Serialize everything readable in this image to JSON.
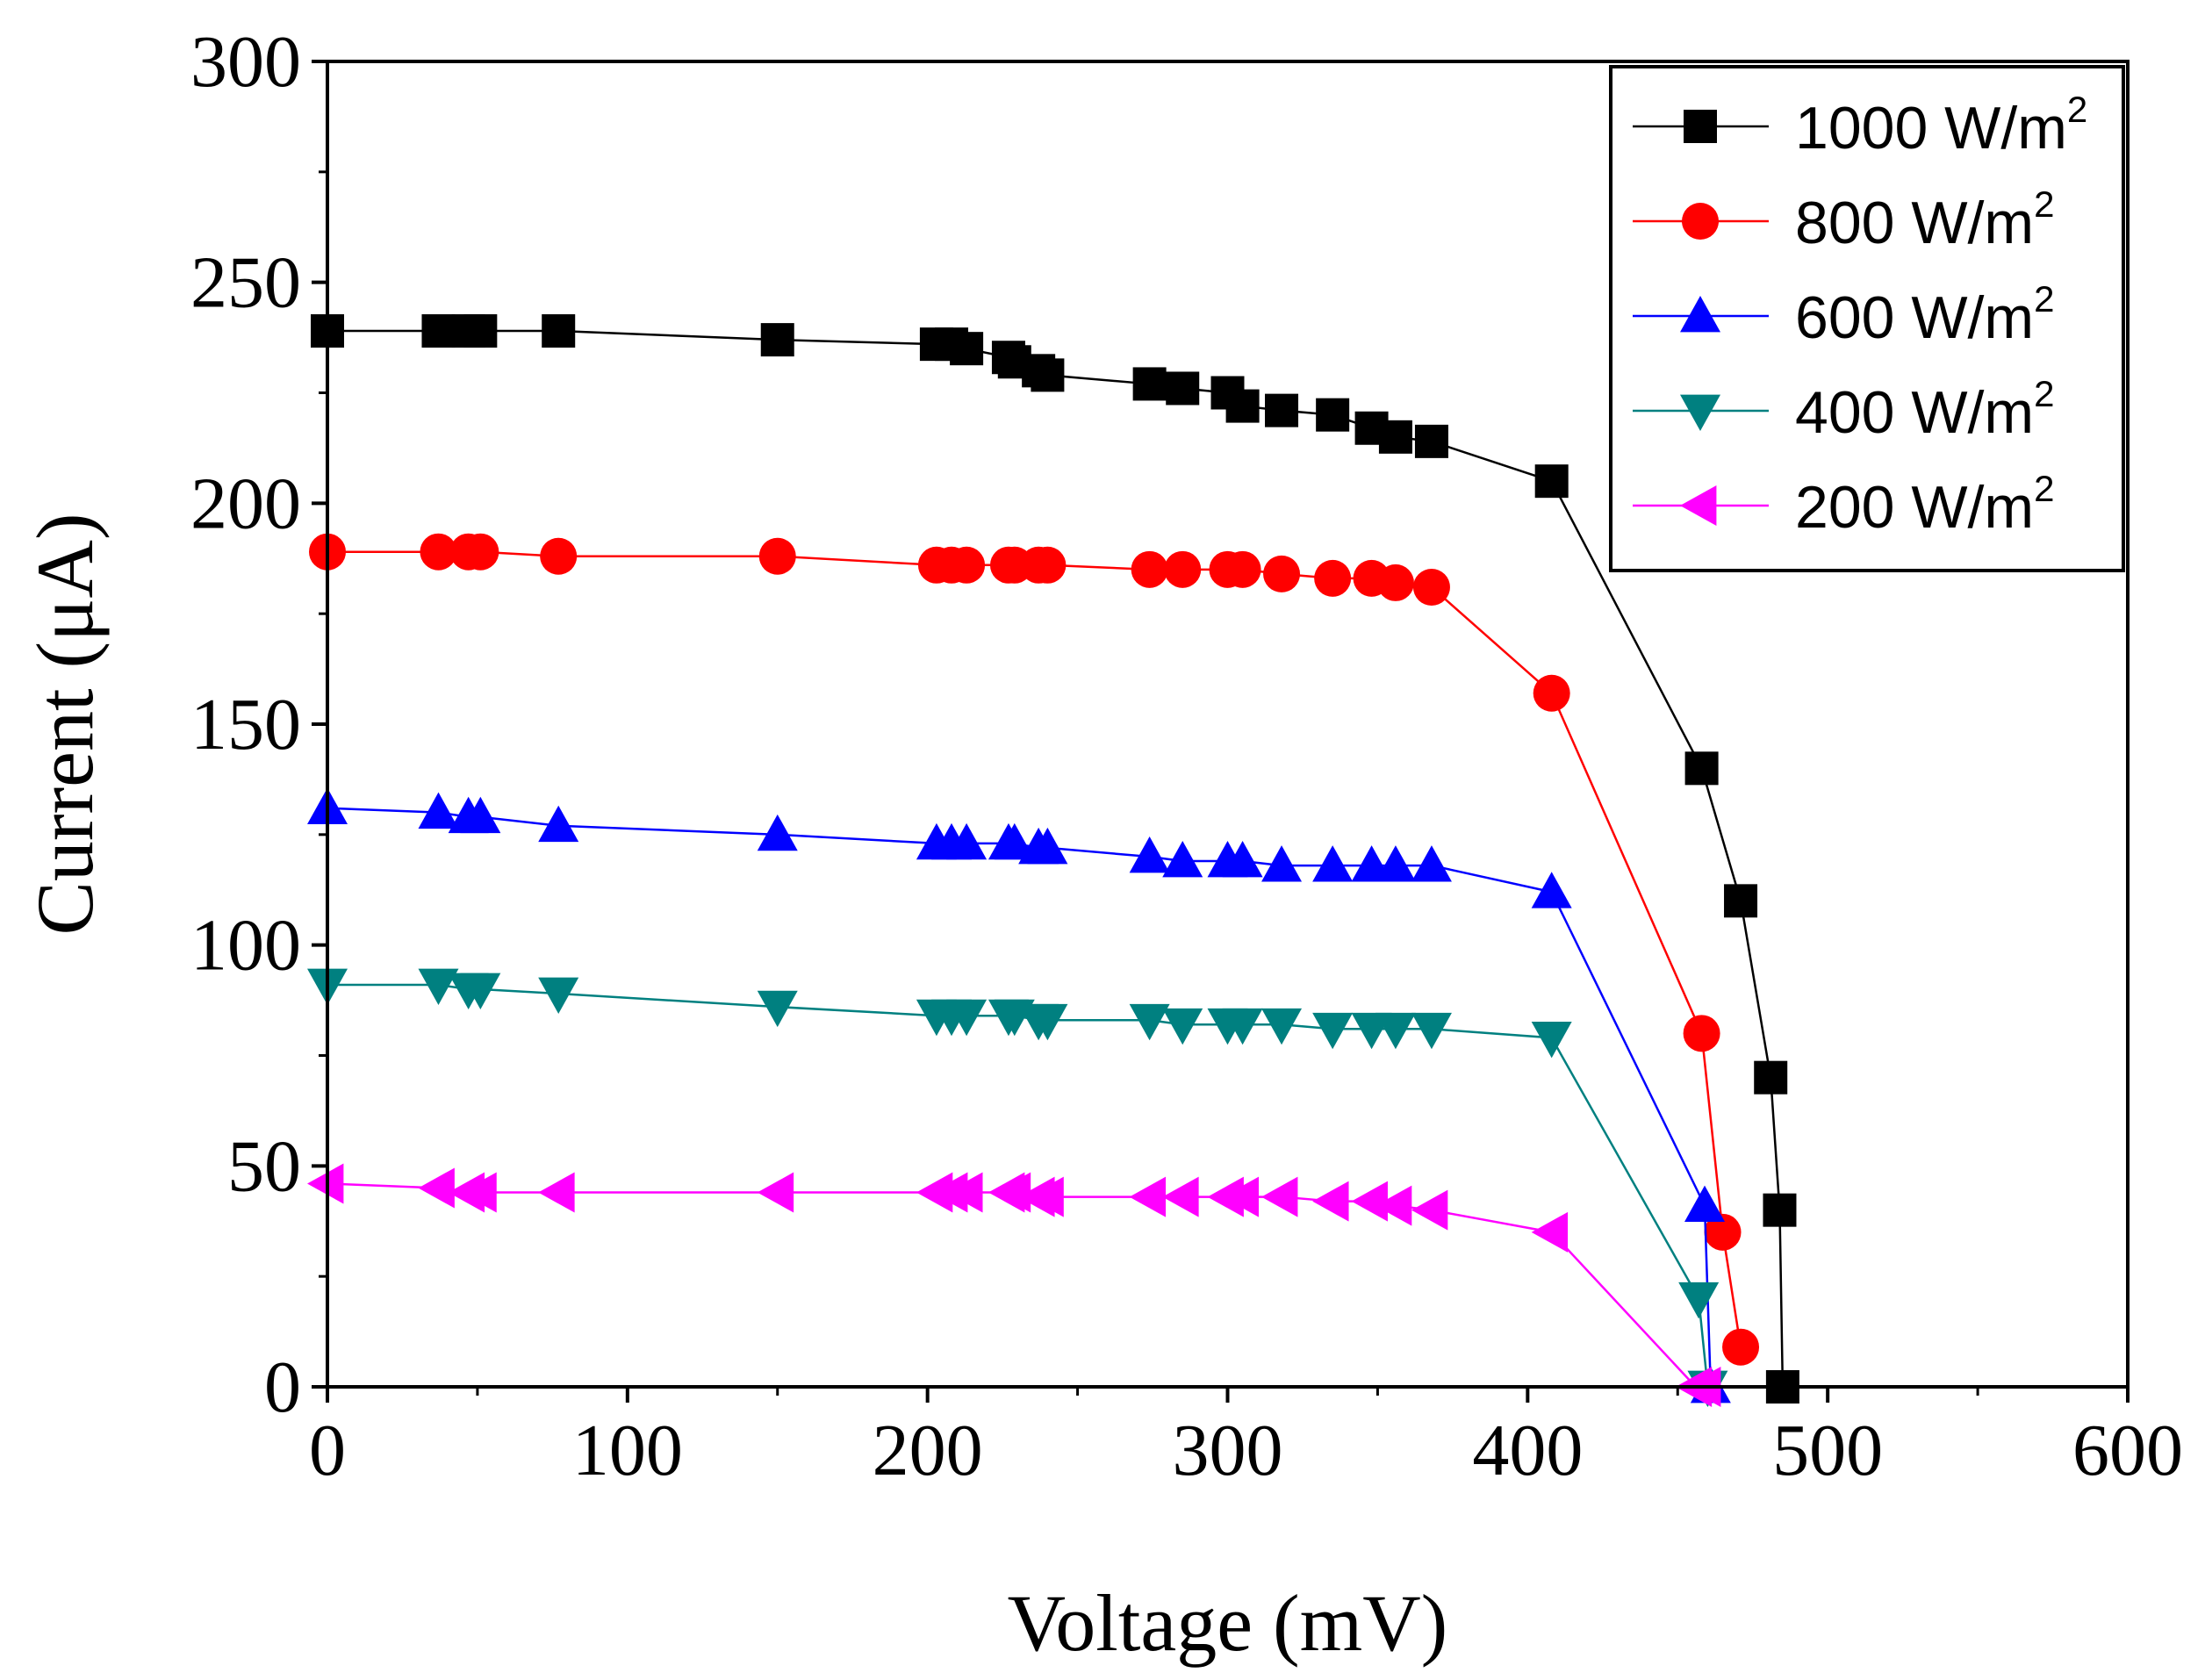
{
  "chart_data": {
    "type": "line",
    "xlabel": "Voltage (mV)",
    "ylabel": "Current (μA)",
    "xlim": [
      0,
      600
    ],
    "ylim": [
      0,
      300
    ],
    "x_ticks": [
      0,
      100,
      200,
      300,
      400,
      500,
      600
    ],
    "y_ticks": [
      0,
      50,
      100,
      150,
      200,
      250,
      300
    ],
    "grid": false,
    "legend_position": "top-right",
    "series": [
      {
        "name": "1000 W/m",
        "name_sup": "2",
        "marker": "square",
        "color": "#000000",
        "points": [
          [
            0,
            239
          ],
          [
            37,
            239
          ],
          [
            47,
            239
          ],
          [
            51,
            239
          ],
          [
            77,
            239
          ],
          [
            150,
            237
          ],
          [
            203,
            236
          ],
          [
            208,
            236
          ],
          [
            213,
            235
          ],
          [
            227,
            233
          ],
          [
            229,
            232
          ],
          [
            237,
            230
          ],
          [
            240,
            229
          ],
          [
            274,
            227
          ],
          [
            285,
            226
          ],
          [
            300,
            225
          ],
          [
            305,
            222
          ],
          [
            318,
            221
          ],
          [
            335,
            220
          ],
          [
            348,
            217
          ],
          [
            356,
            215
          ],
          [
            368,
            214
          ],
          [
            408,
            205
          ],
          [
            458,
            140
          ],
          [
            471,
            110
          ],
          [
            481,
            70
          ],
          [
            484,
            40
          ],
          [
            485,
            0
          ]
        ]
      },
      {
        "name": "800 W/m",
        "name_sup": "2",
        "marker": "circle",
        "color": "#ff0000",
        "points": [
          [
            0,
            189
          ],
          [
            37,
            189
          ],
          [
            47,
            189
          ],
          [
            51,
            189
          ],
          [
            77,
            188
          ],
          [
            150,
            188
          ],
          [
            203,
            186
          ],
          [
            208,
            186
          ],
          [
            213,
            186
          ],
          [
            227,
            186
          ],
          [
            229,
            186
          ],
          [
            237,
            186
          ],
          [
            240,
            186
          ],
          [
            274,
            185
          ],
          [
            285,
            185
          ],
          [
            300,
            185
          ],
          [
            305,
            185
          ],
          [
            318,
            184
          ],
          [
            335,
            183
          ],
          [
            348,
            183
          ],
          [
            356,
            182
          ],
          [
            368,
            181
          ],
          [
            408,
            157
          ],
          [
            458,
            80
          ],
          [
            465,
            35
          ],
          [
            471,
            9
          ]
        ]
      },
      {
        "name": "600 W/m",
        "name_sup": "2",
        "marker": "triangle-up",
        "color": "#0000ff",
        "points": [
          [
            0,
            131
          ],
          [
            37,
            130
          ],
          [
            47,
            129
          ],
          [
            51,
            129
          ],
          [
            77,
            127
          ],
          [
            150,
            125
          ],
          [
            203,
            123
          ],
          [
            208,
            123
          ],
          [
            213,
            123
          ],
          [
            227,
            123
          ],
          [
            229,
            123
          ],
          [
            237,
            122
          ],
          [
            240,
            122
          ],
          [
            274,
            120
          ],
          [
            285,
            119
          ],
          [
            300,
            119
          ],
          [
            305,
            119
          ],
          [
            318,
            118
          ],
          [
            335,
            118
          ],
          [
            348,
            118
          ],
          [
            356,
            118
          ],
          [
            368,
            118
          ],
          [
            408,
            112
          ],
          [
            459,
            41
          ],
          [
            461,
            0
          ]
        ]
      },
      {
        "name": "400 W/m",
        "name_sup": "2",
        "marker": "triangle-down",
        "color": "#008080",
        "points": [
          [
            0,
            91
          ],
          [
            37,
            91
          ],
          [
            47,
            90
          ],
          [
            51,
            90
          ],
          [
            77,
            89
          ],
          [
            150,
            86
          ],
          [
            203,
            84
          ],
          [
            208,
            84
          ],
          [
            213,
            84
          ],
          [
            227,
            84
          ],
          [
            229,
            84
          ],
          [
            237,
            83
          ],
          [
            240,
            83
          ],
          [
            274,
            83
          ],
          [
            285,
            82
          ],
          [
            300,
            82
          ],
          [
            305,
            82
          ],
          [
            318,
            82
          ],
          [
            335,
            81
          ],
          [
            348,
            81
          ],
          [
            356,
            81
          ],
          [
            368,
            81
          ],
          [
            408,
            79
          ],
          [
            457,
            20
          ],
          [
            460,
            0
          ]
        ]
      },
      {
        "name": "200 W/m",
        "name_sup": "2",
        "marker": "triangle-left",
        "color": "#ff00ff",
        "points": [
          [
            0,
            46
          ],
          [
            37,
            45
          ],
          [
            47,
            44
          ],
          [
            51,
            44
          ],
          [
            77,
            44
          ],
          [
            150,
            44
          ],
          [
            203,
            44
          ],
          [
            208,
            44
          ],
          [
            213,
            44
          ],
          [
            227,
            44
          ],
          [
            229,
            44
          ],
          [
            237,
            43
          ],
          [
            240,
            43
          ],
          [
            274,
            43
          ],
          [
            285,
            43
          ],
          [
            300,
            43
          ],
          [
            305,
            43
          ],
          [
            318,
            43
          ],
          [
            335,
            42
          ],
          [
            348,
            42
          ],
          [
            356,
            41
          ],
          [
            368,
            40
          ],
          [
            408,
            35
          ],
          [
            456,
            0
          ],
          [
            459,
            0
          ]
        ]
      }
    ]
  }
}
